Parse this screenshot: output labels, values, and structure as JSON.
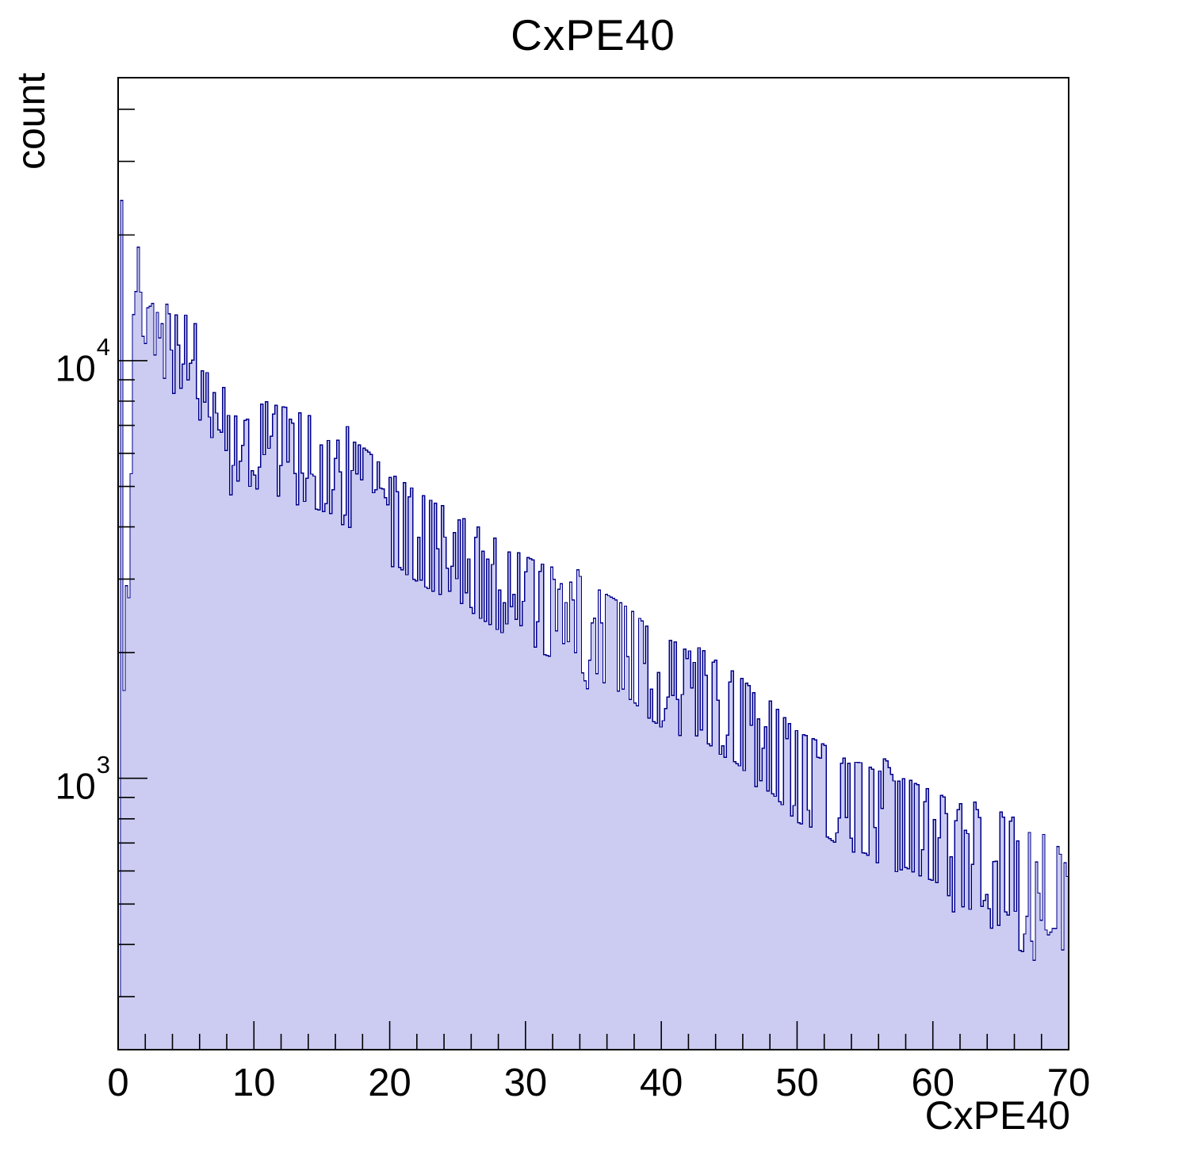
{
  "labels": {
    "title": "CxPE40",
    "ylabel": "count",
    "xlabel": "CxPE40"
  },
  "chart_data": {
    "type": "bar",
    "subtype": "filled-step-histogram",
    "title": "CxPE40",
    "xlabel": "CxPE40",
    "ylabel": "count",
    "x_range": [
      0,
      70
    ],
    "y_range": [
      224,
      47600
    ],
    "y_scale": "log10",
    "grid": "off",
    "legend": "none",
    "n_bins": 400,
    "bin_width": 0.175,
    "x_major_ticks": [
      0,
      10,
      20,
      30,
      40,
      50,
      60,
      70
    ],
    "x_minor_tick_step": 2,
    "y_major_ticks": [
      {
        "value": 1000,
        "label_base": "10",
        "label_exp": "3"
      },
      {
        "value": 10000,
        "label_base": "10",
        "label_exp": "4"
      }
    ],
    "y_minor_ticks": [
      300,
      400,
      500,
      600,
      700,
      800,
      900,
      2000,
      3000,
      4000,
      5000,
      6000,
      7000,
      8000,
      9000,
      20000,
      30000,
      40000
    ],
    "envelope_points": [
      [
        0.09,
        300
      ],
      [
        0.26,
        25200
      ],
      [
        0.43,
        1600
      ],
      [
        0.61,
        2250
      ],
      [
        0.79,
        3000
      ],
      [
        0.96,
        4600
      ],
      [
        1.07,
        7000
      ],
      [
        1.14,
        12700
      ],
      [
        1.3,
        15800
      ],
      [
        1.42,
        16900
      ],
      [
        1.5,
        17200
      ],
      [
        1.65,
        15600
      ],
      [
        1.8,
        14800
      ],
      [
        1.95,
        14300
      ],
      [
        2.1,
        13800
      ],
      [
        2.2,
        14200
      ],
      [
        2.35,
        13500
      ],
      [
        2.6,
        13300
      ],
      [
        2.9,
        13100
      ],
      [
        3.1,
        12300
      ],
      [
        3.3,
        11800
      ],
      [
        3.7,
        11200
      ],
      [
        4.0,
        10400
      ],
      [
        4.25,
        11100
      ],
      [
        4.4,
        10000
      ],
      [
        4.7,
        9900
      ],
      [
        5.0,
        10050
      ],
      [
        5.3,
        9200
      ],
      [
        5.6,
        9900
      ],
      [
        5.9,
        8850
      ],
      [
        6.3,
        8300
      ],
      [
        6.7,
        7950
      ],
      [
        7.1,
        7600
      ],
      [
        7.6,
        7150
      ],
      [
        8.0,
        6800
      ],
      [
        8.15,
        7600
      ],
      [
        8.3,
        6100
      ],
      [
        8.6,
        6650
      ],
      [
        9.3,
        6500
      ],
      [
        10.0,
        6350
      ],
      [
        10.8,
        6250
      ],
      [
        11.8,
        6080
      ],
      [
        12.6,
        6030
      ],
      [
        13.1,
        5750
      ],
      [
        13.6,
        5950
      ],
      [
        14.3,
        5700
      ],
      [
        15.0,
        5600
      ],
      [
        15.8,
        5500
      ],
      [
        16.1,
        5450
      ],
      [
        16.35,
        4350
      ],
      [
        16.55,
        5250
      ],
      [
        16.8,
        5600
      ],
      [
        17.1,
        5050
      ],
      [
        17.6,
        4950
      ],
      [
        18.2,
        4800
      ],
      [
        19.0,
        4550
      ],
      [
        20.0,
        4100
      ],
      [
        20.6,
        4150
      ],
      [
        21.2,
        3950
      ],
      [
        22.0,
        3800
      ],
      [
        23.0,
        3620
      ],
      [
        24.0,
        3500
      ],
      [
        25.0,
        3430
      ],
      [
        26.0,
        3200
      ],
      [
        27.0,
        3050
      ],
      [
        28.0,
        2900
      ],
      [
        29.0,
        2760
      ],
      [
        30.0,
        2660
      ],
      [
        31.0,
        2560
      ],
      [
        32.0,
        2500
      ],
      [
        32.3,
        2100
      ],
      [
        32.6,
        2600
      ],
      [
        32.9,
        2150
      ],
      [
        33.2,
        2550
      ],
      [
        33.5,
        2080
      ],
      [
        33.8,
        2500
      ],
      [
        34.2,
        2300
      ],
      [
        34.6,
        2080
      ],
      [
        35.0,
        2250
      ],
      [
        36.0,
        2150
      ],
      [
        37.0,
        2060
      ],
      [
        38.0,
        1950
      ],
      [
        39.0,
        1800
      ],
      [
        40.0,
        1700
      ],
      [
        41.0,
        1660
      ],
      [
        42.0,
        1570
      ],
      [
        42.6,
        1620
      ],
      [
        43.5,
        1550
      ],
      [
        44.5,
        1450
      ],
      [
        45.5,
        1400
      ],
      [
        46.5,
        1300
      ],
      [
        47.3,
        1180
      ],
      [
        48.0,
        1200
      ],
      [
        48.8,
        1120
      ],
      [
        49.5,
        1050
      ],
      [
        50.2,
        1000
      ],
      [
        51.0,
        980
      ],
      [
        52.0,
        940
      ],
      [
        53.0,
        890
      ],
      [
        54.0,
        855
      ],
      [
        55.0,
        850
      ],
      [
        56.0,
        800
      ],
      [
        56.5,
        880
      ],
      [
        57.2,
        760
      ],
      [
        58.0,
        785
      ],
      [
        59.0,
        750
      ],
      [
        60.0,
        730
      ],
      [
        61.0,
        700
      ],
      [
        61.6,
        600
      ],
      [
        62.0,
        690
      ],
      [
        62.5,
        560
      ],
      [
        63.0,
        700
      ],
      [
        63.5,
        620
      ],
      [
        64.0,
        680
      ],
      [
        64.6,
        470
      ],
      [
        65.0,
        650
      ],
      [
        65.5,
        600
      ],
      [
        66.0,
        640
      ],
      [
        66.5,
        470
      ],
      [
        67.0,
        620
      ],
      [
        67.5,
        460
      ],
      [
        68.0,
        590
      ],
      [
        68.5,
        540
      ],
      [
        69.0,
        565
      ],
      [
        69.5,
        500
      ],
      [
        70.0,
        480
      ]
    ],
    "colors": {
      "fill": "#ccccf2",
      "line": "#00008b",
      "frame": "#000000",
      "text": "#000000",
      "background": "#ffffff"
    },
    "render_hints": {
      "noise_seed": 42,
      "noise_rel_coeff": 2.0,
      "legend_position": "none"
    }
  }
}
